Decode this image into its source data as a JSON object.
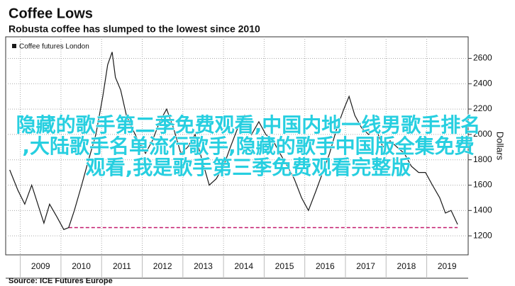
{
  "chart_data": {
    "type": "line",
    "title": "Coffee Lows",
    "subtitle": "Robusta coffee has slumped to the lowest since 2010",
    "y_label": "Dollars",
    "source": "Source: ICE Futures Europe",
    "x": [
      2008.74,
      2008.94,
      2009.11,
      2009.28,
      2009.46,
      2009.58,
      2009.72,
      2009.9,
      2010.07,
      2010.19,
      2010.33,
      2010.51,
      2010.68,
      2010.86,
      2011.03,
      2011.15,
      2011.26,
      2011.34,
      2011.47,
      2011.61,
      2011.75,
      2011.9,
      2012.08,
      2012.25,
      2012.43,
      2012.6,
      2012.77,
      2012.95,
      2013.12,
      2013.3,
      2013.47,
      2013.65,
      2013.82,
      2014.0,
      2014.17,
      2014.35,
      2014.52,
      2014.69,
      2014.87,
      2015.04,
      2015.22,
      2015.39,
      2015.57,
      2015.74,
      2015.92,
      2016.09,
      2016.27,
      2016.44,
      2016.61,
      2016.79,
      2016.96,
      2017.09,
      2017.23,
      2017.4,
      2017.57,
      2017.75,
      2017.92,
      2018.1,
      2018.27,
      2018.45,
      2018.62,
      2018.8,
      2018.97,
      2019.14,
      2019.32,
      2019.46,
      2019.6,
      2019.76
    ],
    "series": [
      {
        "name": "Coffee futures London",
        "color": "#1a1a1a",
        "values": [
          1720,
          1560,
          1450,
          1600,
          1420,
          1300,
          1450,
          1350,
          1250,
          1265,
          1400,
          1600,
          1800,
          2000,
          2300,
          2550,
          2650,
          2450,
          2350,
          2150,
          2050,
          1950,
          1850,
          1950,
          2100,
          2200,
          2050,
          1850,
          1900,
          2000,
          1800,
          1600,
          1650,
          1750,
          1900,
          2050,
          2150,
          2000,
          2100,
          2000,
          1950,
          1850,
          1750,
          1650,
          1500,
          1400,
          1550,
          1700,
          1850,
          2050,
          2200,
          2300,
          2150,
          2050,
          2000,
          2050,
          1900,
          1950,
          1900,
          1850,
          1750,
          1700,
          1700,
          1600,
          1500,
          1380,
          1400,
          1290
        ]
      }
    ],
    "reference_line": {
      "y": 1265,
      "x": [
        2010.19,
        2019.76
      ],
      "color": "#c2186b"
    },
    "xlim": [
      2008.64,
      2020.02
    ],
    "xticks": [
      {
        "value": 2009,
        "label": "2009"
      },
      {
        "value": 2010,
        "label": "2010"
      },
      {
        "value": 2011,
        "label": "2011"
      },
      {
        "value": 2012,
        "label": "2012"
      },
      {
        "value": 2013,
        "label": "2013"
      },
      {
        "value": 2014,
        "label": "2014"
      },
      {
        "value": 2015,
        "label": "2015"
      },
      {
        "value": 2016,
        "label": "2016"
      },
      {
        "value": 2017,
        "label": "2017"
      },
      {
        "value": 2018,
        "label": "2018"
      },
      {
        "value": 2019,
        "label": "2019"
      }
    ],
    "ylim": [
      1050,
      2770
    ],
    "yticks": [
      1200,
      1400,
      1600,
      1800,
      2000,
      2200,
      2400,
      2600
    ],
    "grid": true
  },
  "overlay_text": [
    "隐藏的歌手第二季免费观看,中国内地一线男歌手排名",
    ",大陆歌手名单流行歌手,隐藏的歌手中国版全集免费",
    "观看,我是歌手第三季免费观看完整版"
  ]
}
